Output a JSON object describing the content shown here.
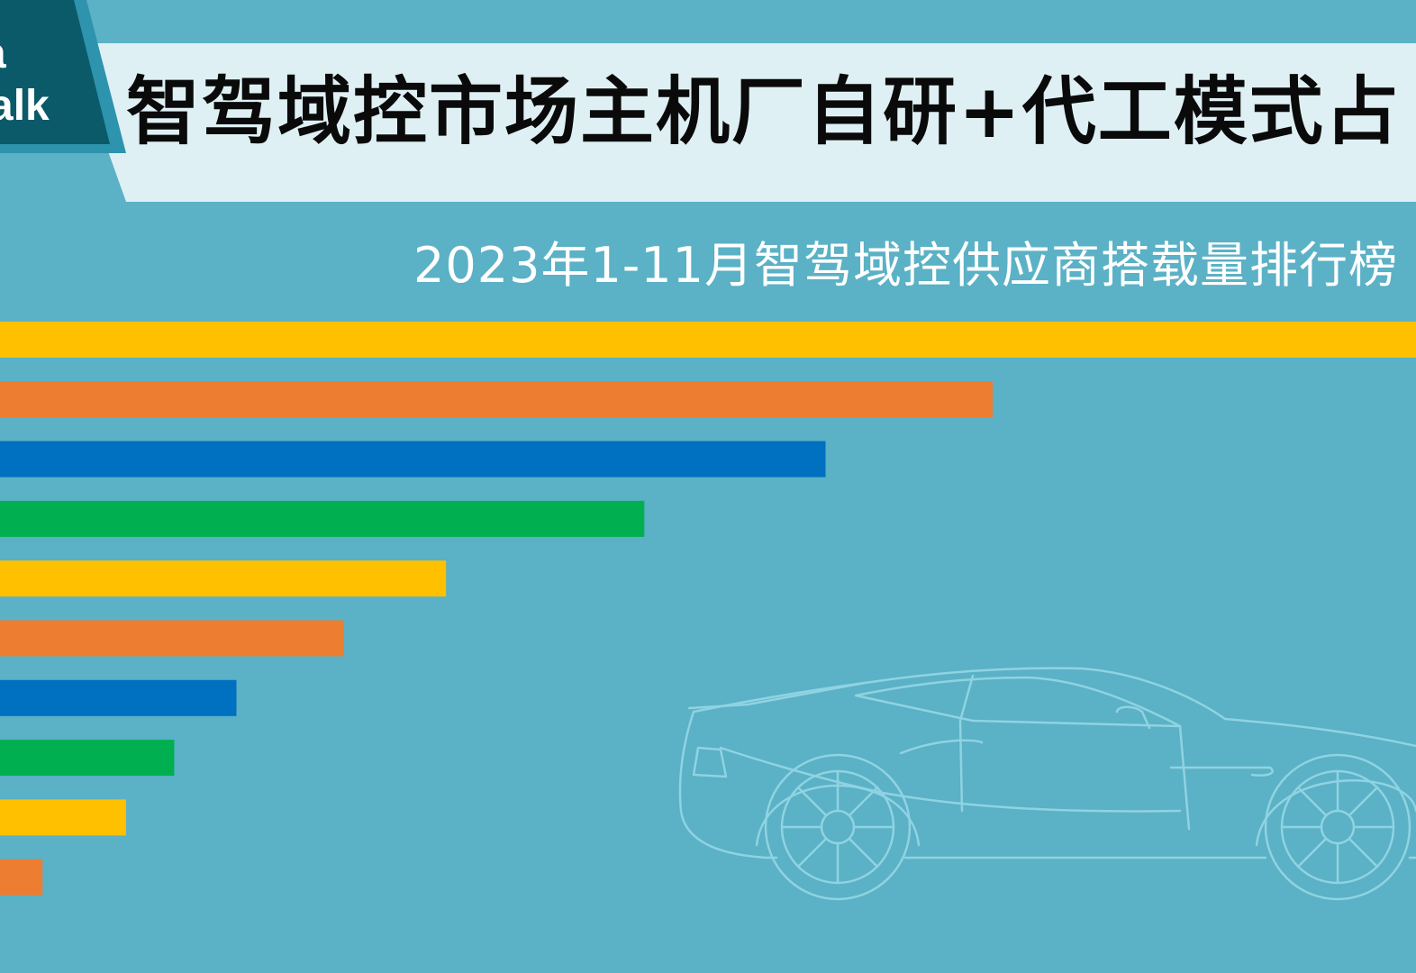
{
  "logo": {
    "line1": "a",
    "line2": "alk"
  },
  "header": {
    "title": "智驾域控市场主机厂自研+代工模式占",
    "subtitle": "2023年1-11月智驾域控供应商搭载量排行榜"
  },
  "colors": {
    "background": "#5bb1c5",
    "title_band": "#dff0f4",
    "logo_dark": "#0b5a6a",
    "logo_accent": "#2e93ad",
    "car_outline": "#8fd3e2"
  },
  "chart_data": {
    "type": "bar",
    "orientation": "horizontal",
    "title": "2023年1-11月智驾域控供应商搭载量排行榜",
    "categories": [
      "",
      "",
      "",
      "",
      "",
      "",
      "",
      "",
      "",
      ""
    ],
    "values": [
      100,
      70.1,
      58.3,
      45.5,
      31.5,
      24.3,
      16.7,
      12.3,
      8.9,
      3.0
    ],
    "colors": [
      "#ffc000",
      "#ed7d31",
      "#0070c0",
      "#00b050",
      "#ffc000",
      "#ed7d31",
      "#0070c0",
      "#00b050",
      "#ffc000",
      "#ed7d31"
    ],
    "xlim": [
      0,
      100
    ],
    "grid": false,
    "legend": "none"
  }
}
